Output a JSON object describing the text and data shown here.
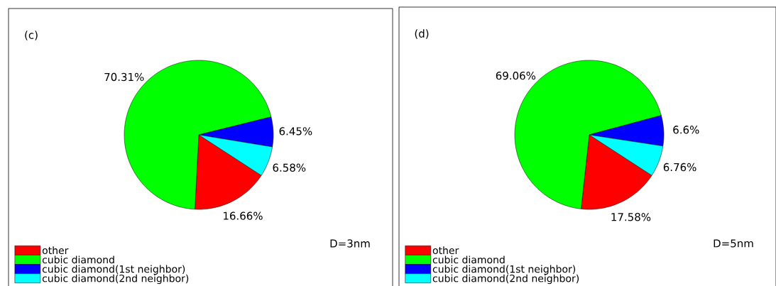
{
  "chart_data": [
    {
      "type": "pie",
      "title": "(c)",
      "categories": [
        "other",
        "cubic diamond",
        "cubic diamond(1st neighbor)",
        "cubic diamond(2nd neighbor)"
      ],
      "values": [
        16.66,
        70.31,
        6.45,
        6.58
      ],
      "colors": [
        "#ff0000",
        "#00ff00",
        "#0000ff",
        "#00ffff"
      ],
      "value_labels": [
        "16.66%",
        "70.31%",
        "6.45%",
        "6.58%"
      ],
      "annotations": [
        "D=3nm"
      ],
      "legend": "bottom left"
    },
    {
      "type": "pie",
      "title": "(d)",
      "categories": [
        "other",
        "cubic diamond",
        "cubic diamond(1st neighbor)",
        "cubic diamond(2nd neighbor)"
      ],
      "values": [
        17.58,
        69.06,
        6.6,
        6.76
      ],
      "colors": [
        "#ff0000",
        "#00ff00",
        "#0000ff",
        "#00ffff"
      ],
      "value_labels": [
        "17.58%",
        "69.06%",
        "6.6%",
        "6.76%"
      ],
      "annotations": [
        "D=5nm"
      ],
      "legend": "bottom left"
    }
  ]
}
